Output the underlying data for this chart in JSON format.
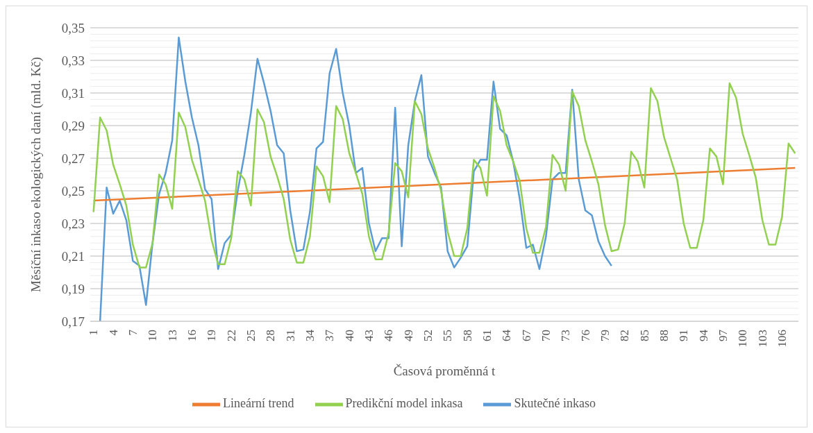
{
  "chart_data": {
    "type": "line",
    "xlabel": "Časová proměnná t",
    "ylabel": "Měsíční inkaso ekologických daní (mld. Kč)",
    "x": [
      1,
      2,
      3,
      4,
      5,
      6,
      7,
      8,
      9,
      10,
      11,
      12,
      13,
      14,
      15,
      16,
      17,
      18,
      19,
      20,
      21,
      22,
      23,
      24,
      25,
      26,
      27,
      28,
      29,
      30,
      31,
      32,
      33,
      34,
      35,
      36,
      37,
      38,
      39,
      40,
      41,
      42,
      43,
      44,
      45,
      46,
      47,
      48,
      49,
      50,
      51,
      52,
      53,
      54,
      55,
      56,
      57,
      58,
      59,
      60,
      61,
      62,
      63,
      64,
      65,
      66,
      67,
      68,
      69,
      70,
      71,
      72,
      73,
      74,
      75,
      76,
      77,
      78,
      79,
      80,
      81,
      82,
      83,
      84,
      85,
      86,
      87,
      88,
      89,
      90,
      91,
      92,
      93,
      94,
      95,
      96,
      97,
      98,
      99,
      100,
      101,
      102,
      103,
      104,
      105,
      106,
      107,
      108
    ],
    "xlim": [
      0.5,
      108.5
    ],
    "xticks": [
      1,
      4,
      7,
      10,
      13,
      16,
      19,
      22,
      25,
      28,
      31,
      34,
      37,
      40,
      43,
      46,
      49,
      52,
      55,
      58,
      61,
      64,
      67,
      70,
      73,
      76,
      79,
      82,
      85,
      88,
      91,
      94,
      97,
      100,
      103,
      106
    ],
    "ylim": [
      0.17,
      0.35
    ],
    "yticks": [
      {
        "value": 0.17,
        "label": "0,17"
      },
      {
        "value": 0.174,
        "label": null
      },
      {
        "value": 0.178,
        "label": null
      },
      {
        "value": 0.182,
        "label": null
      },
      {
        "value": 0.186,
        "label": null
      },
      {
        "value": 0.19,
        "label": "0,19"
      },
      {
        "value": 0.194,
        "label": null
      },
      {
        "value": 0.198,
        "label": null
      },
      {
        "value": 0.202,
        "label": null
      },
      {
        "value": 0.206,
        "label": null
      },
      {
        "value": 0.21,
        "label": "0,21"
      },
      {
        "value": 0.214,
        "label": null
      },
      {
        "value": 0.218,
        "label": null
      },
      {
        "value": 0.222,
        "label": null
      },
      {
        "value": 0.226,
        "label": null
      },
      {
        "value": 0.23,
        "label": "0,23"
      },
      {
        "value": 0.234,
        "label": null
      },
      {
        "value": 0.238,
        "label": null
      },
      {
        "value": 0.242,
        "label": null
      },
      {
        "value": 0.246,
        "label": null
      },
      {
        "value": 0.25,
        "label": "0,25"
      },
      {
        "value": 0.254,
        "label": null
      },
      {
        "value": 0.258,
        "label": null
      },
      {
        "value": 0.262,
        "label": null
      },
      {
        "value": 0.266,
        "label": null
      },
      {
        "value": 0.27,
        "label": "0,27"
      },
      {
        "value": 0.274,
        "label": null
      },
      {
        "value": 0.278,
        "label": null
      },
      {
        "value": 0.282,
        "label": null
      },
      {
        "value": 0.286,
        "label": null
      },
      {
        "value": 0.29,
        "label": "0,29"
      },
      {
        "value": 0.294,
        "label": null
      },
      {
        "value": 0.298,
        "label": null
      },
      {
        "value": 0.302,
        "label": null
      },
      {
        "value": 0.306,
        "label": null
      },
      {
        "value": 0.31,
        "label": "0,31"
      },
      {
        "value": 0.314,
        "label": null
      },
      {
        "value": 0.318,
        "label": null
      },
      {
        "value": 0.322,
        "label": null
      },
      {
        "value": 0.326,
        "label": null
      },
      {
        "value": 0.33,
        "label": "0,33"
      },
      {
        "value": 0.334,
        "label": null
      },
      {
        "value": 0.338,
        "label": null
      },
      {
        "value": 0.342,
        "label": null
      },
      {
        "value": 0.346,
        "label": null
      },
      {
        "value": 0.35,
        "label": "0,35"
      }
    ],
    "grid": "y",
    "legend": "bottom",
    "marker": "none",
    "line_style": "solid",
    "series": [
      {
        "name": "Skutečné inkaso",
        "color": "#5b9bd5",
        "values": [
          null,
          0.17,
          0.252,
          0.236,
          0.244,
          0.232,
          0.207,
          0.204,
          0.18,
          0.218,
          0.248,
          0.261,
          0.281,
          0.344,
          0.317,
          0.295,
          0.278,
          0.251,
          0.245,
          0.202,
          0.218,
          0.223,
          0.25,
          0.272,
          0.298,
          0.331,
          0.316,
          0.299,
          0.278,
          0.273,
          0.238,
          0.213,
          0.214,
          0.237,
          0.276,
          0.28,
          0.322,
          0.337,
          0.31,
          0.29,
          0.261,
          0.264,
          0.23,
          0.213,
          0.221,
          0.221,
          0.301,
          0.216,
          0.278,
          0.305,
          0.321,
          0.271,
          0.261,
          0.252,
          0.213,
          0.203,
          0.209,
          0.216,
          0.262,
          0.269,
          0.269,
          0.317,
          0.288,
          0.284,
          0.268,
          0.245,
          0.215,
          0.217,
          0.202,
          0.222,
          0.257,
          0.261,
          0.261,
          0.312,
          0.257,
          0.238,
          0.235,
          0.219,
          0.21,
          0.204,
          null,
          null,
          null,
          null,
          null,
          null,
          null,
          null,
          null,
          null,
          null,
          null,
          null,
          null,
          null,
          null,
          null,
          null,
          null,
          null,
          null,
          null,
          null,
          null,
          null,
          null,
          null,
          null
        ]
      },
      {
        "name": "Lineární trend",
        "color": "#ed7d31",
        "x": [
          1,
          108
        ],
        "values": [
          0.244,
          0.264
        ]
      },
      {
        "name": "Predikční model inkasa",
        "color": "#92d050",
        "values": [
          0.237,
          0.295,
          0.287,
          0.266,
          0.254,
          0.241,
          0.217,
          0.203,
          0.203,
          0.218,
          0.26,
          0.254,
          0.239,
          0.298,
          0.289,
          0.269,
          0.257,
          0.244,
          0.22,
          0.205,
          0.205,
          0.221,
          0.262,
          0.257,
          0.241,
          0.3,
          0.292,
          0.271,
          0.259,
          0.245,
          0.22,
          0.206,
          0.206,
          0.222,
          0.265,
          0.259,
          0.243,
          0.302,
          0.294,
          0.273,
          0.261,
          0.248,
          0.222,
          0.208,
          0.208,
          0.224,
          0.267,
          0.262,
          0.246,
          0.305,
          0.297,
          0.276,
          0.264,
          0.25,
          0.225,
          0.21,
          0.21,
          0.227,
          0.269,
          0.264,
          0.247,
          0.308,
          0.299,
          0.278,
          0.268,
          0.256,
          0.227,
          0.212,
          0.212,
          0.228,
          0.272,
          0.266,
          0.25,
          0.311,
          0.302,
          0.281,
          0.268,
          0.254,
          0.229,
          0.213,
          0.214,
          0.23,
          0.274,
          0.268,
          0.252,
          0.313,
          0.305,
          0.283,
          0.27,
          0.257,
          0.23,
          0.215,
          0.215,
          0.232,
          0.276,
          0.271,
          0.254,
          0.316,
          0.307,
          0.285,
          0.272,
          0.258,
          0.232,
          0.217,
          0.217,
          0.234,
          0.279,
          0.273
        ]
      }
    ]
  }
}
